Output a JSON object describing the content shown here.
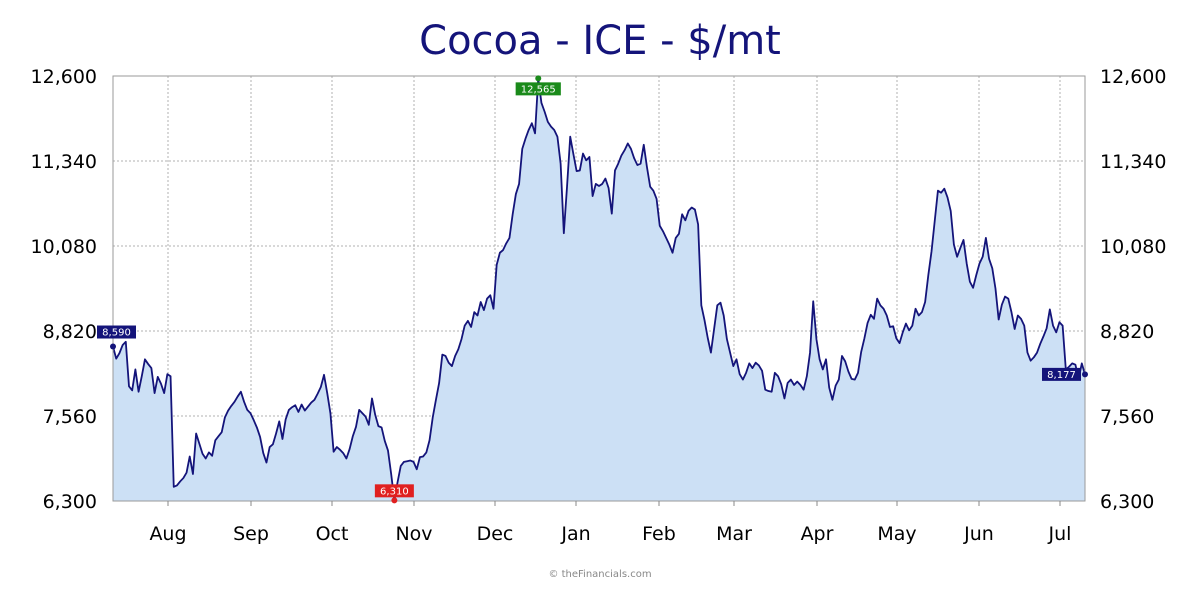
{
  "chart_data": {
    "type": "area",
    "title": "Cocoa - ICE - $/mt",
    "credit": "© theFinancials.com",
    "y_ticks": [
      6300,
      7560,
      8820,
      10080,
      11340,
      12600
    ],
    "y_tick_labels": [
      "6,300",
      "7,560",
      "8,820",
      "10,080",
      "11,340",
      "12,600"
    ],
    "ylim": [
      6300,
      12600
    ],
    "x_ticks": [
      "Aug",
      "Sep",
      "Oct",
      "Nov",
      "Dec",
      "Jan",
      "Feb",
      "Mar",
      "Apr",
      "May",
      "Jun",
      "Jul"
    ],
    "grid": true,
    "y_axis_sides": [
      "left",
      "right"
    ],
    "colors": {
      "line": "#14147a",
      "fill": "#cce0f5",
      "grid": "#b0b0b0",
      "high": "#1a8a1a",
      "low": "#e02020",
      "start": "#14147a",
      "last": "#14147a"
    },
    "annotations": [
      {
        "label": "8,590",
        "kind": "start"
      },
      {
        "label": "12,565",
        "kind": "high"
      },
      {
        "label": "6,310",
        "kind": "low"
      },
      {
        "label": "8,177",
        "kind": "last"
      }
    ],
    "series": [
      {
        "values": [
          8590,
          8410,
          8490,
          8610,
          8660,
          8000,
          7940,
          8250,
          7920,
          8150,
          8400,
          8330,
          8270,
          7900,
          8140,
          8040,
          7900,
          8180,
          8150,
          6510,
          6530,
          6590,
          6640,
          6720,
          6960,
          6700,
          7300,
          7150,
          7000,
          6930,
          7020,
          6970,
          7200,
          7260,
          7320,
          7540,
          7640,
          7710,
          7770,
          7850,
          7920,
          7770,
          7650,
          7600,
          7500,
          7390,
          7250,
          7010,
          6870,
          7100,
          7140,
          7300,
          7480,
          7220,
          7510,
          7650,
          7690,
          7720,
          7620,
          7730,
          7640,
          7700,
          7760,
          7800,
          7890,
          7990,
          8170,
          7900,
          7600,
          7030,
          7100,
          7060,
          7010,
          6930,
          7070,
          7260,
          7400,
          7650,
          7600,
          7550,
          7430,
          7820,
          7580,
          7410,
          7390,
          7190,
          7050,
          6700,
          6310,
          6580,
          6820,
          6880,
          6890,
          6900,
          6880,
          6770,
          6950,
          6960,
          7020,
          7200,
          7540,
          7800,
          8050,
          8470,
          8450,
          8350,
          8300,
          8450,
          8550,
          8700,
          8900,
          8970,
          8880,
          9100,
          9050,
          9250,
          9130,
          9300,
          9350,
          9150,
          9800,
          9980,
          10020,
          10120,
          10200,
          10550,
          10850,
          11000,
          11520,
          11670,
          11800,
          11900,
          11750,
          12565,
          12200,
          12070,
          11920,
          11850,
          11800,
          11700,
          11300,
          10270,
          10960,
          11700,
          11440,
          11190,
          11200,
          11450,
          11350,
          11400,
          10820,
          11000,
          10970,
          11000,
          11080,
          10940,
          10560,
          11200,
          11300,
          11420,
          11500,
          11600,
          11520,
          11380,
          11280,
          11300,
          11580,
          11250,
          10960,
          10900,
          10780,
          10380,
          10300,
          10200,
          10100,
          9980,
          10200,
          10260,
          10550,
          10460,
          10600,
          10650,
          10620,
          10400,
          9200,
          8980,
          8720,
          8500,
          8850,
          9200,
          9240,
          9050,
          8700,
          8500,
          8300,
          8400,
          8180,
          8100,
          8200,
          8340,
          8270,
          8350,
          8310,
          8230,
          7950,
          7930,
          7920,
          8200,
          8150,
          8030,
          7820,
          8050,
          8100,
          8020,
          8070,
          8020,
          7950,
          8150,
          8500,
          9260,
          8700,
          8400,
          8250,
          8400,
          7980,
          7800,
          8010,
          8100,
          8450,
          8370,
          8220,
          8110,
          8100,
          8200,
          8510,
          8710,
          8940,
          9060,
          9000,
          9300,
          9200,
          9150,
          9050,
          8880,
          8890,
          8710,
          8640,
          8800,
          8930,
          8830,
          8900,
          9150,
          9050,
          9100,
          9250,
          9650,
          10000,
          10450,
          10900,
          10870,
          10930,
          10800,
          10600,
          10100,
          9920,
          10050,
          10170,
          9820,
          9550,
          9460,
          9650,
          9820,
          9920,
          10200,
          9890,
          9750,
          9450,
          8990,
          9210,
          9330,
          9300,
          9100,
          8850,
          9050,
          9000,
          8900,
          8500,
          8380,
          8430,
          8500,
          8630,
          8740,
          8860,
          9140,
          8900,
          8800,
          8950,
          8900,
          8250,
          8290,
          8340,
          8320,
          8110,
          8340,
          8177
        ]
      }
    ]
  }
}
